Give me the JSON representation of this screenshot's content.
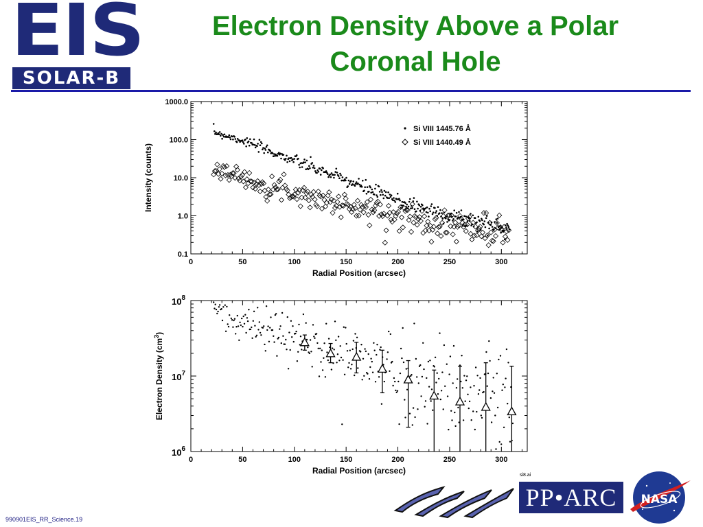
{
  "header": {
    "logo_main": "EIS",
    "logo_sub": "SOLAR-B",
    "title_line1": "Electron Density Above a Polar",
    "title_line2": "Coronal Hole"
  },
  "footer": {
    "slide_id": "990901EIS_RR_Science.19",
    "file_ref": "si8.ai",
    "logos": [
      "ISAS",
      "PPARC",
      "NASA"
    ],
    "pparc_text": "PP•ARC",
    "nasa_text": "NASA"
  },
  "colors": {
    "title": "#1a8a1a",
    "rule": "#1a1aa8",
    "eis_blue": "#1f2a78",
    "nasa_blue": "#1f3a93",
    "nasa_red": "#d21f1f"
  },
  "chart_data": [
    {
      "type": "scatter",
      "xlabel": "Radial Position (arcsec)",
      "ylabel": "Intensity (counts)",
      "xlim": [
        0,
        325
      ],
      "ylim": [
        0.1,
        1000
      ],
      "yscale": "log",
      "xticks": [
        0,
        50,
        100,
        150,
        200,
        250,
        300
      ],
      "xtick_labels": [
        "0",
        "50",
        "100",
        "150",
        "200",
        "250",
        "300"
      ],
      "yticks": [
        0.1,
        1,
        10,
        100,
        1000
      ],
      "ytick_labels": [
        "0.1",
        "1.0",
        "10.0",
        "100.0",
        "1000.0"
      ],
      "legend_position": "top-right",
      "series": [
        {
          "name": "Si VIII 1445.76 Å",
          "marker": "dot",
          "trend": [
            [
              22,
              160
            ],
            [
              50,
              95
            ],
            [
              100,
              28
            ],
            [
              150,
              8.5
            ],
            [
              200,
              2.5
            ],
            [
              250,
              1.0
            ],
            [
              300,
              0.5
            ]
          ],
          "scatter": 0.08
        },
        {
          "name": "Si VIII 1440.49 Å",
          "marker": "diamond",
          "trend": [
            [
              22,
              18
            ],
            [
              50,
              9.5
            ],
            [
              100,
              4.2
            ],
            [
              150,
              1.8
            ],
            [
              200,
              1.0
            ],
            [
              250,
              0.6
            ],
            [
              300,
              0.35
            ]
          ],
          "scatter": 0.16
        }
      ]
    },
    {
      "type": "scatter",
      "xlabel": "Radial Position (arcsec)",
      "ylabel": "Electron Density (cm",
      "ylabel_sup": "3",
      "ylabel_end": ")",
      "xlim": [
        0,
        325
      ],
      "ylim": [
        1000000,
        100000000
      ],
      "yscale": "log",
      "xticks": [
        0,
        50,
        100,
        150,
        200,
        250,
        300
      ],
      "xtick_labels": [
        "0",
        "50",
        "100",
        "150",
        "200",
        "250",
        "300"
      ],
      "ytick_labels": [
        {
          "value": 1000000,
          "base": "10",
          "exp": "6"
        },
        {
          "value": 10000000,
          "base": "10",
          "exp": "7"
        },
        {
          "value": 100000000,
          "base": "10",
          "exp": "8"
        }
      ],
      "points_trend": [
        [
          22,
          82000000
        ],
        [
          50,
          50000000
        ],
        [
          100,
          30000000
        ],
        [
          150,
          19000000
        ],
        [
          200,
          11000000
        ],
        [
          250,
          7000000
        ],
        [
          300,
          5000000
        ]
      ],
      "averages": [
        {
          "x": 110,
          "y": 28000000,
          "lo": 22000000,
          "hi": 35000000
        },
        {
          "x": 135,
          "y": 20000000,
          "lo": 15000000,
          "hi": 27000000
        },
        {
          "x": 160,
          "y": 18000000,
          "lo": 11000000,
          "hi": 28000000
        },
        {
          "x": 185,
          "y": 12500000,
          "lo": 6000000,
          "hi": 22000000
        },
        {
          "x": 210,
          "y": 9000000,
          "lo": 2100000,
          "hi": 16000000
        },
        {
          "x": 235,
          "y": 5500000,
          "lo": 1000000,
          "hi": 12000000
        },
        {
          "x": 260,
          "y": 4600000,
          "lo": 1000000,
          "hi": 13500000
        },
        {
          "x": 285,
          "y": 3900000,
          "lo": 1000000,
          "hi": 15000000
        },
        {
          "x": 310,
          "y": 3400000,
          "lo": 1000000,
          "hi": 13500000
        }
      ]
    }
  ]
}
